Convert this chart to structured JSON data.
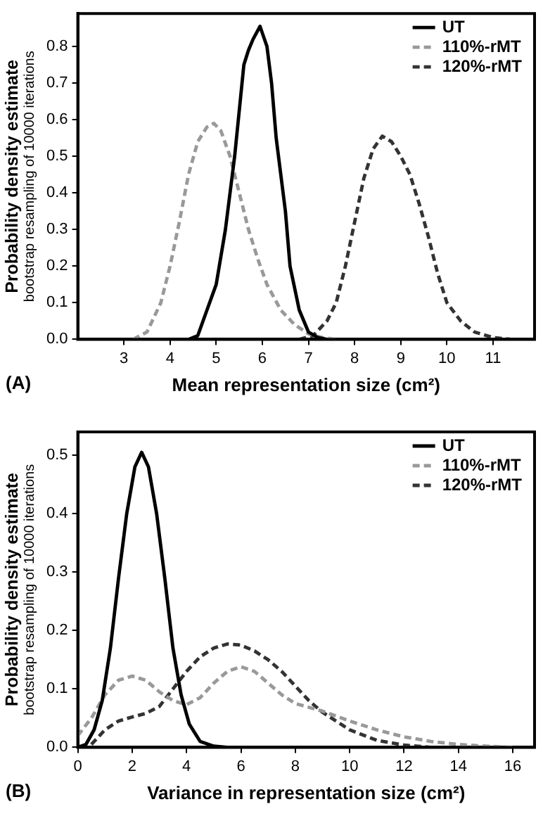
{
  "chart_data": [
    {
      "type": "line",
      "xlabel": "Mean representation size (cm²)",
      "ylabel": "Probability density estimate\nbootstrap resampling of 10000 iterations",
      "annotations": [
        "(A)"
      ],
      "xlim": [
        2,
        11.9
      ],
      "xticks": [
        3,
        4,
        5,
        6,
        7,
        8,
        9,
        10,
        11
      ],
      "ylim": [
        0,
        0.89
      ],
      "yticks": [
        {
          "value": 0,
          "label": "0.0"
        },
        0.1,
        0.2,
        0.3,
        0.4,
        0.5,
        0.6,
        0.7,
        0.8
      ],
      "grid": false,
      "legend": "top right",
      "marker": "none",
      "series": [
        {
          "name": "UT",
          "color": "#000000",
          "line_style": "solid",
          "x": [
            4.4,
            4.6,
            4.8,
            5.0,
            5.2,
            5.4,
            5.6,
            5.7,
            5.8,
            5.95,
            6.1,
            6.2,
            6.3,
            6.5,
            6.6,
            6.8,
            7.0,
            7.2,
            7.4
          ],
          "values": [
            0,
            0.01,
            0.08,
            0.15,
            0.3,
            0.5,
            0.75,
            0.79,
            0.82,
            0.855,
            0.8,
            0.7,
            0.55,
            0.35,
            0.2,
            0.08,
            0.02,
            0.005,
            0
          ]
        },
        {
          "name": "110%-rMT",
          "color": "#999999",
          "line_style": "dashed",
          "x": [
            3.2,
            3.5,
            3.8,
            4.0,
            4.2,
            4.4,
            4.6,
            4.8,
            4.95,
            5.1,
            5.3,
            5.5,
            5.7,
            5.9,
            6.1,
            6.4,
            6.7,
            7.0,
            7.3,
            7.6
          ],
          "values": [
            0,
            0.02,
            0.1,
            0.2,
            0.32,
            0.45,
            0.54,
            0.58,
            0.59,
            0.57,
            0.5,
            0.4,
            0.3,
            0.22,
            0.15,
            0.08,
            0.04,
            0.015,
            0.005,
            0
          ]
        },
        {
          "name": "120%-rMT",
          "color": "#333333",
          "line_style": "dashed",
          "x": [
            6.8,
            7.1,
            7.4,
            7.6,
            7.8,
            8.0,
            8.2,
            8.4,
            8.6,
            8.8,
            9.0,
            9.2,
            9.4,
            9.6,
            9.8,
            10.0,
            10.3,
            10.6,
            11.0,
            11.4
          ],
          "values": [
            0,
            0.01,
            0.05,
            0.1,
            0.2,
            0.32,
            0.44,
            0.52,
            0.555,
            0.54,
            0.5,
            0.45,
            0.37,
            0.28,
            0.18,
            0.1,
            0.05,
            0.02,
            0.005,
            0
          ]
        }
      ]
    },
    {
      "type": "line",
      "xlabel": "Variance in representation size (cm²)",
      "ylabel": "Probability density estimate\nbootstrap resampling of 10000 iterations",
      "annotations": [
        "(B)"
      ],
      "xlim": [
        0,
        16.8
      ],
      "xticks": [
        0,
        2,
        4,
        6,
        8,
        10,
        12,
        14,
        16
      ],
      "ylim": [
        0,
        0.54
      ],
      "yticks": [
        {
          "value": 0,
          "label": "0.0"
        },
        0.1,
        0.2,
        0.3,
        0.4,
        0.5
      ],
      "grid": false,
      "legend": "top right",
      "marker": "none",
      "series": [
        {
          "name": "UT",
          "color": "#000000",
          "line_style": "solid",
          "x": [
            0,
            0.3,
            0.6,
            0.9,
            1.2,
            1.5,
            1.8,
            2.1,
            2.35,
            2.6,
            2.9,
            3.2,
            3.5,
            3.8,
            4.1,
            4.5,
            5.0,
            5.5
          ],
          "values": [
            0,
            0.005,
            0.03,
            0.08,
            0.17,
            0.29,
            0.4,
            0.48,
            0.505,
            0.48,
            0.4,
            0.29,
            0.17,
            0.09,
            0.04,
            0.01,
            0.002,
            0
          ]
        },
        {
          "name": "110%-rMT",
          "color": "#999999",
          "line_style": "dashed",
          "x": [
            0,
            0.5,
            1.0,
            1.5,
            2.0,
            2.5,
            3.0,
            3.5,
            4.0,
            4.5,
            5.0,
            5.5,
            6.0,
            6.5,
            7.0,
            7.5,
            8.0,
            9.0,
            10,
            11,
            12,
            13,
            14,
            15,
            16
          ],
          "values": [
            0.02,
            0.05,
            0.09,
            0.115,
            0.122,
            0.115,
            0.095,
            0.08,
            0.073,
            0.085,
            0.11,
            0.13,
            0.138,
            0.13,
            0.11,
            0.09,
            0.075,
            0.062,
            0.045,
            0.03,
            0.018,
            0.01,
            0.005,
            0.002,
            0
          ]
        },
        {
          "name": "120%-rMT",
          "color": "#333333",
          "line_style": "dashed",
          "x": [
            0.5,
            1.0,
            1.5,
            2.0,
            2.5,
            3.0,
            3.5,
            4.0,
            4.5,
            5.0,
            5.5,
            6.0,
            6.5,
            7.0,
            7.5,
            8.0,
            8.5,
            9.0,
            10,
            11,
            12,
            13
          ],
          "values": [
            0.005,
            0.03,
            0.045,
            0.052,
            0.058,
            0.07,
            0.1,
            0.13,
            0.155,
            0.17,
            0.177,
            0.175,
            0.165,
            0.15,
            0.13,
            0.105,
            0.08,
            0.06,
            0.03,
            0.012,
            0.004,
            0
          ]
        }
      ]
    }
  ]
}
